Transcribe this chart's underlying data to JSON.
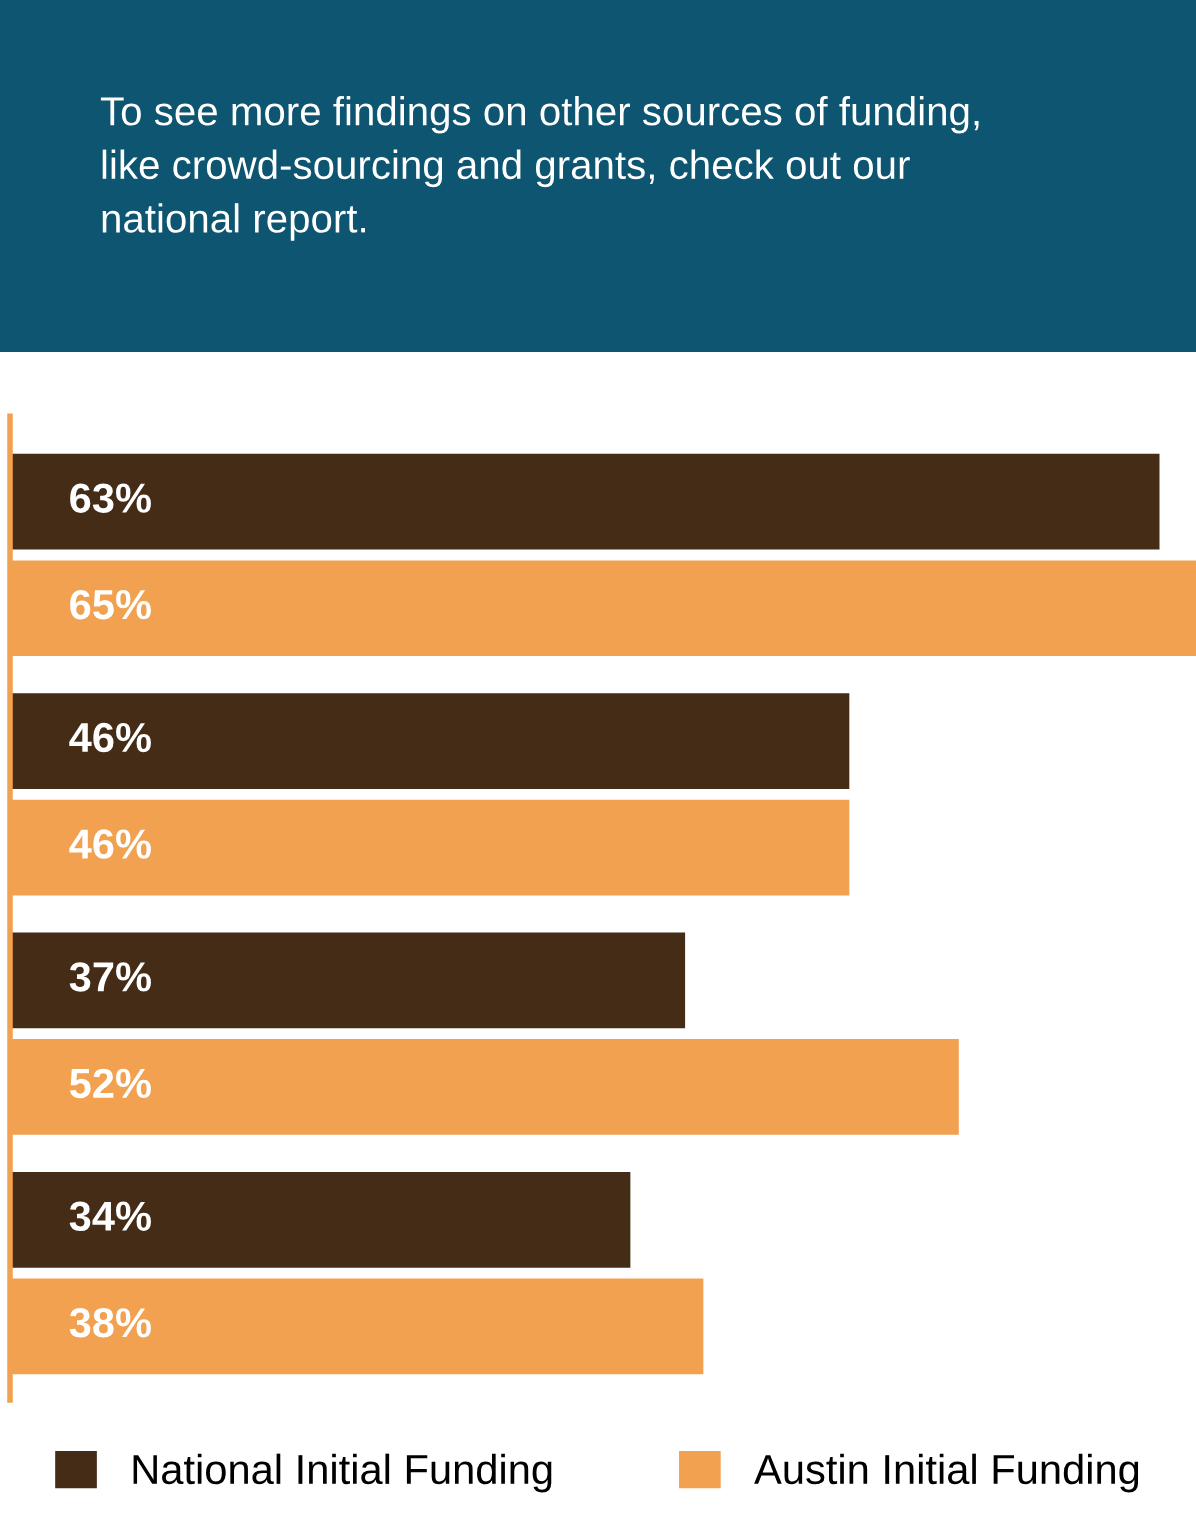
{
  "chart_data": {
    "type": "bar",
    "orientation": "horizontal",
    "title": "To see more findings on other sources of funding,\nlike crowd-sourcing and grants, check out our\nnational report.",
    "categories": [
      null,
      null,
      null,
      null
    ],
    "series": [
      {
        "name": "National Initial Funding",
        "color": "#452c17",
        "values": [
          63,
          46,
          37,
          34
        ],
        "value_labels": [
          "63%",
          "46%",
          "37%",
          "34%"
        ]
      },
      {
        "name": "Austin Initial Funding",
        "color": "#f2a150",
        "values": [
          65,
          46,
          52,
          38
        ],
        "value_labels": [
          "65%",
          "46%",
          "52%",
          "38%"
        ]
      }
    ],
    "legend": "bottom"
  }
}
